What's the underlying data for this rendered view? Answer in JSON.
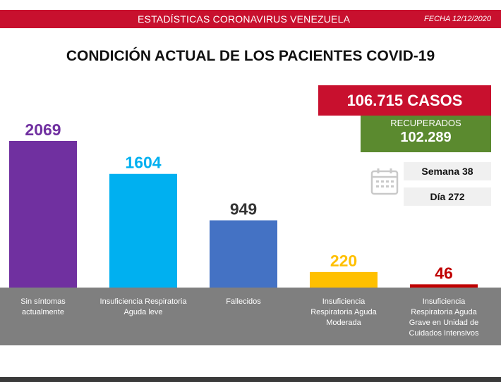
{
  "header": {
    "banner_title": "ESTADÍSTICAS CORONAVIRUS VENEZUELA",
    "date": "FECHA 12/12/2020",
    "colors": {
      "banner": "#c8102e"
    }
  },
  "summary": {
    "cases": "106.715 CASOS",
    "recovered_label": "RECUPERADOS",
    "recovered_value": "102.289",
    "week": "Semana 38",
    "day": "Día 272",
    "icon": "calendar-icon",
    "colors": {
      "cases": "#c8102e",
      "recovered": "#5b8a2f"
    }
  },
  "chart_data": {
    "type": "bar",
    "title": "CONDICIÓN ACTUAL DE LOS PACIENTES COVID-19",
    "categories": [
      "Sin síntomas actualmente",
      "Insuficiencia Respiratoria Aguda leve",
      "Fallecidos",
      "Insuficiencia Respiratoria Aguda Moderada",
      "Insuficiencia Respiratoria Aguda Grave en Unidad de Cuidados Intensivos"
    ],
    "values": [
      2069,
      1604,
      949,
      220,
      46
    ],
    "bar_colors": [
      "#7030a0",
      "#00b0f0",
      "#4472c4",
      "#ffc000",
      "#c00000"
    ],
    "value_label_colors": [
      "#7030a0",
      "#00b0f0",
      "#333333",
      "#ffc000",
      "#c00000"
    ],
    "ylim": [
      0,
      2069
    ],
    "grid": false,
    "legend": "none"
  }
}
